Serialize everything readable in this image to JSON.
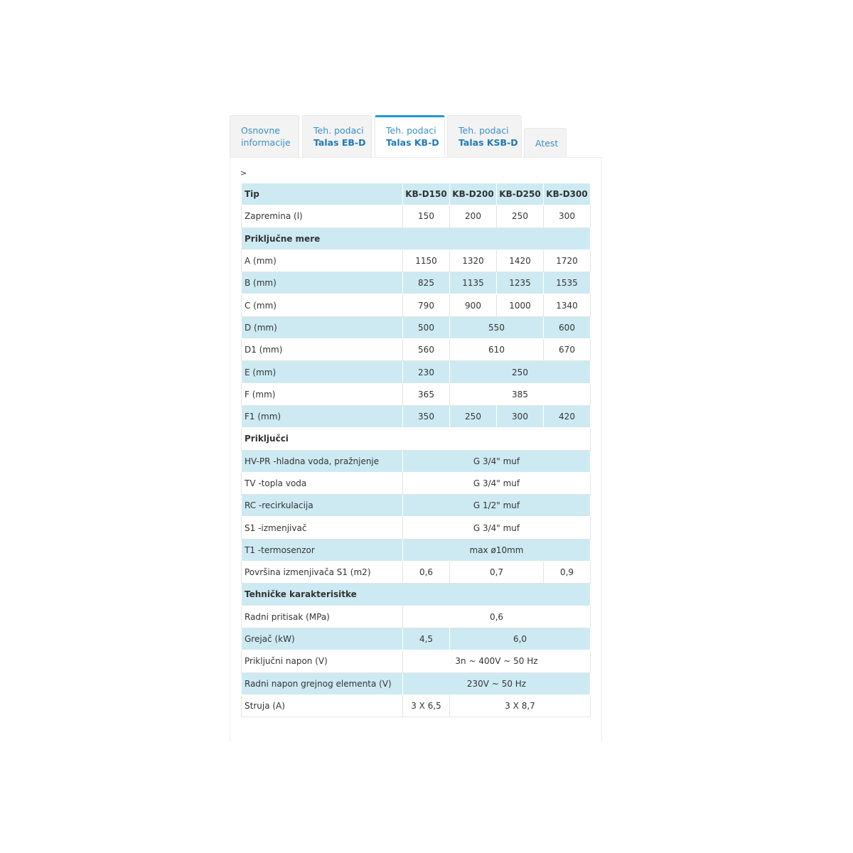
{
  "tabs": [
    {
      "line1": "Osnovne",
      "line2": "informacije",
      "bold": false
    },
    {
      "line1": "Teh. podaci",
      "line2": "Talas EB-D",
      "bold": true
    },
    {
      "line1": "Teh. podaci",
      "line2": "Talas KB-D",
      "bold": true,
      "active": true
    },
    {
      "line1": "Teh. podaci",
      "line2": "Talas KSB-D",
      "bold": true
    },
    {
      "line1": "",
      "line2": "Atest",
      "bold": false
    }
  ],
  "breadcrumb": ">",
  "colors": {
    "accent": "#1e9ad6",
    "row_blue": "#cdeaf3",
    "tab_text": "#3a8fc7"
  },
  "table": {
    "rows": [
      {
        "style": "blue",
        "header": true,
        "cells": [
          {
            "t": "Tip"
          },
          {
            "t": "KB-D150"
          },
          {
            "t": "KB-D200"
          },
          {
            "t": "KB-D250"
          },
          {
            "t": "KB-D300"
          }
        ]
      },
      {
        "style": "white",
        "cells": [
          {
            "t": "Zapremina (l)"
          },
          {
            "t": "150"
          },
          {
            "t": "200"
          },
          {
            "t": "250"
          },
          {
            "t": "300"
          }
        ]
      },
      {
        "style": "blue",
        "section": true,
        "cells": [
          {
            "t": "Priključne mere",
            "span": 5
          }
        ]
      },
      {
        "style": "white",
        "cells": [
          {
            "t": "A (mm)"
          },
          {
            "t": "1150"
          },
          {
            "t": "1320"
          },
          {
            "t": "1420"
          },
          {
            "t": "1720"
          }
        ]
      },
      {
        "style": "blue",
        "cells": [
          {
            "t": "B (mm)"
          },
          {
            "t": "825"
          },
          {
            "t": "1135"
          },
          {
            "t": "1235"
          },
          {
            "t": "1535"
          }
        ]
      },
      {
        "style": "white",
        "cells": [
          {
            "t": "C (mm)"
          },
          {
            "t": "790"
          },
          {
            "t": "900"
          },
          {
            "t": "1000"
          },
          {
            "t": "1340"
          }
        ]
      },
      {
        "style": "blue",
        "cells": [
          {
            "t": "D (mm)"
          },
          {
            "t": "500"
          },
          {
            "t": "550",
            "span": 2
          },
          {
            "t": "600"
          }
        ]
      },
      {
        "style": "white",
        "cells": [
          {
            "t": "D1 (mm)"
          },
          {
            "t": "560"
          },
          {
            "t": "610",
            "span": 2
          },
          {
            "t": "670"
          }
        ]
      },
      {
        "style": "blue",
        "cells": [
          {
            "t": "E (mm)"
          },
          {
            "t": "230"
          },
          {
            "t": "250",
            "span": 3
          }
        ]
      },
      {
        "style": "white",
        "cells": [
          {
            "t": "F (mm)"
          },
          {
            "t": "365"
          },
          {
            "t": "385",
            "span": 3
          }
        ]
      },
      {
        "style": "blue",
        "cells": [
          {
            "t": "F1 (mm)"
          },
          {
            "t": "350"
          },
          {
            "t": "250"
          },
          {
            "t": "300"
          },
          {
            "t": "420"
          }
        ]
      },
      {
        "style": "white",
        "section": true,
        "cells": [
          {
            "t": "Priključci",
            "span": 5
          }
        ]
      },
      {
        "style": "blue",
        "cells": [
          {
            "t": "HV-PR -hladna voda, pražnjenje"
          },
          {
            "t": "G 3/4\" muf",
            "span": 4
          }
        ]
      },
      {
        "style": "white",
        "cells": [
          {
            "t": "TV -topla voda"
          },
          {
            "t": "G 3/4\" muf",
            "span": 4
          }
        ]
      },
      {
        "style": "blue",
        "cells": [
          {
            "t": "RC -recirkulacija"
          },
          {
            "t": "G 1/2\" muf",
            "span": 4
          }
        ]
      },
      {
        "style": "white",
        "cells": [
          {
            "t": "S1 -izmenjivač"
          },
          {
            "t": "G 3/4\" muf",
            "span": 4
          }
        ]
      },
      {
        "style": "blue",
        "cells": [
          {
            "t": "T1 -termosenzor"
          },
          {
            "t": "max ø10mm",
            "span": 4
          }
        ]
      },
      {
        "style": "white",
        "cells": [
          {
            "t": "Površina izmenjivača S1 (m2)"
          },
          {
            "t": "0,6"
          },
          {
            "t": "0,7",
            "span": 2
          },
          {
            "t": "0,9"
          }
        ]
      },
      {
        "style": "blue",
        "section": true,
        "cells": [
          {
            "t": "Tehničke karakterisitke",
            "span": 5
          }
        ]
      },
      {
        "style": "white",
        "cells": [
          {
            "t": "Radni pritisak (MPa)"
          },
          {
            "t": "0,6",
            "span": 4
          }
        ]
      },
      {
        "style": "blue",
        "cells": [
          {
            "t": "Grejač (kW)"
          },
          {
            "t": "4,5"
          },
          {
            "t": "6,0",
            "span": 3
          }
        ]
      },
      {
        "style": "white",
        "cells": [
          {
            "t": "Priključni napon (V)"
          },
          {
            "t": "3n ~ 400V ~ 50 Hz",
            "span": 4
          }
        ]
      },
      {
        "style": "blue",
        "cells": [
          {
            "t": "Radni napon grejnog elementa (V)"
          },
          {
            "t": "230V ~ 50 Hz",
            "span": 4
          }
        ]
      },
      {
        "style": "white",
        "cells": [
          {
            "t": "Struja (A)"
          },
          {
            "t": "3 X 6,5"
          },
          {
            "t": "3 X 8,7",
            "span": 3
          }
        ]
      }
    ]
  }
}
